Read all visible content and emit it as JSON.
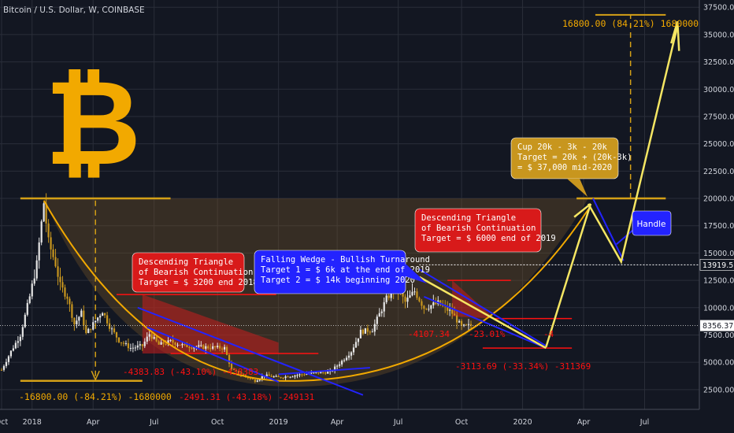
{
  "header": {
    "title": "Bitcoin / U.S. Dollar, W, COINBASE"
  },
  "colors": {
    "bg": "#131722",
    "grid": "#2a2e39",
    "axis_text": "#d1d4dc",
    "up": "#e6e6e6",
    "down": "#c8961e",
    "accent": "#f2a900",
    "yellow": "#f5e663",
    "blue": "#2323ff",
    "red": "#ff1111",
    "redfill": "#d81a1a"
  },
  "chart_data": {
    "type": "candlestick",
    "title": "Bitcoin / U.S. Dollar, W, COINBASE",
    "ylim": [
      500,
      38000
    ],
    "y_ticks": [
      2500,
      5000,
      7500,
      10000,
      12500,
      15000,
      17500,
      20000,
      22500,
      25000,
      27500,
      30000,
      32500,
      35000,
      37500
    ],
    "y_tick_labels": [
      "2500.00",
      "5000.00",
      "7500.00",
      "10000.00",
      "12500.00",
      "15000.00",
      "17500.00",
      "20000.00",
      "22500.00",
      "25000.00",
      "27500.00",
      "30000.00",
      "32500.00",
      "35000.00",
      "37500.00"
    ],
    "x_ticks": [
      "Oct",
      "2018",
      "Apr",
      "Jul",
      "Oct",
      "2019",
      "Apr",
      "Jul",
      "Oct",
      "2020",
      "Apr",
      "Jul"
    ],
    "x_tick_weeks": [
      0,
      13,
      39,
      65,
      92,
      118,
      143,
      169,
      196,
      222,
      248,
      274
    ],
    "price_labels": [
      {
        "value": 13919.55,
        "text": "13919.55"
      },
      {
        "value": 8356.37,
        "text": "8356.37"
      }
    ],
    "anchors": [
      {
        "w": 0,
        "c": 4300
      },
      {
        "w": 4,
        "c": 6000
      },
      {
        "w": 8,
        "c": 7500
      },
      {
        "w": 12,
        "c": 11000
      },
      {
        "w": 15,
        "c": 14000
      },
      {
        "w": 18,
        "c": 19600
      },
      {
        "w": 20,
        "c": 16000
      },
      {
        "w": 23,
        "c": 14000
      },
      {
        "w": 25,
        "c": 12000
      },
      {
        "w": 28,
        "c": 11000
      },
      {
        "w": 31,
        "c": 8500
      },
      {
        "w": 34,
        "c": 9500
      },
      {
        "w": 36,
        "c": 7600
      },
      {
        "w": 40,
        "c": 8800
      },
      {
        "w": 43,
        "c": 9700
      },
      {
        "w": 46,
        "c": 8300
      },
      {
        "w": 50,
        "c": 7000
      },
      {
        "w": 55,
        "c": 6300
      },
      {
        "w": 60,
        "c": 6500
      },
      {
        "w": 63,
        "c": 7600
      },
      {
        "w": 67,
        "c": 6600
      },
      {
        "w": 72,
        "c": 6900
      },
      {
        "w": 78,
        "c": 6500
      },
      {
        "w": 85,
        "c": 6400
      },
      {
        "w": 95,
        "c": 6300
      },
      {
        "w": 98,
        "c": 4300
      },
      {
        "w": 104,
        "c": 3700
      },
      {
        "w": 108,
        "c": 3300
      },
      {
        "w": 112,
        "c": 3800
      },
      {
        "w": 118,
        "c": 3600
      },
      {
        "w": 125,
        "c": 3800
      },
      {
        "w": 132,
        "c": 4000
      },
      {
        "w": 140,
        "c": 4100
      },
      {
        "w": 145,
        "c": 5100
      },
      {
        "w": 149,
        "c": 6000
      },
      {
        "w": 153,
        "c": 7800
      },
      {
        "w": 158,
        "c": 8000
      },
      {
        "w": 164,
        "c": 10800
      },
      {
        "w": 168,
        "c": 12000
      },
      {
        "w": 172,
        "c": 10500
      },
      {
        "w": 176,
        "c": 11500
      },
      {
        "w": 180,
        "c": 10000
      },
      {
        "w": 186,
        "c": 10400
      },
      {
        "w": 192,
        "c": 9500
      },
      {
        "w": 196,
        "c": 8200
      },
      {
        "w": 200,
        "c": 8356
      }
    ],
    "cup_arc_label": "",
    "annotations": {
      "box1": {
        "lines": [
          "Descending Triangle",
          "of Bearish Continuation",
          "Target = $ 3200 end 2018"
        ]
      },
      "box2": {
        "lines": [
          "Falling Wedge - Bullish Turnaround",
          "Target 1 = $ 6k at the end of 2019",
          "Target 2 = $ 14k beginning 2020"
        ]
      },
      "box3": {
        "lines": [
          "Descending Triangle",
          "of Bearish Continuation",
          "Target = $ 6000 end of 2019"
        ]
      },
      "box4": {
        "lines": [
          "Cup 20k - 3k - 20k",
          "Target = 20k + (20k-3k)",
          "= $ 37,000 mid-2020"
        ]
      },
      "handle": "Handle",
      "measure_big_bottom": "-16800.00 (-84.21%) -1680000",
      "measure_big_top": "16800.00 (84.21%) 1680000",
      "measure_red1": "-4383.83 (-43.10%) -438383",
      "measure_red2": "-2491.31 (-43.18%) -249131",
      "measure_red3": "-3113.69 (-33.34%) -311369",
      "measure_red4": "-4107.34",
      "measure_red5": "-23.01%",
      "measure_red6": "-4"
    }
  }
}
